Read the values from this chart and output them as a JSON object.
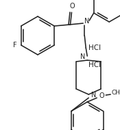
{
  "background": "#ffffff",
  "line_color": "#222222",
  "line_width": 1.15,
  "font_size": 7.0,
  "figsize": [
    1.75,
    1.9
  ],
  "dpi": 100,
  "xlim": [
    0,
    175
  ],
  "ylim": [
    0,
    190
  ]
}
